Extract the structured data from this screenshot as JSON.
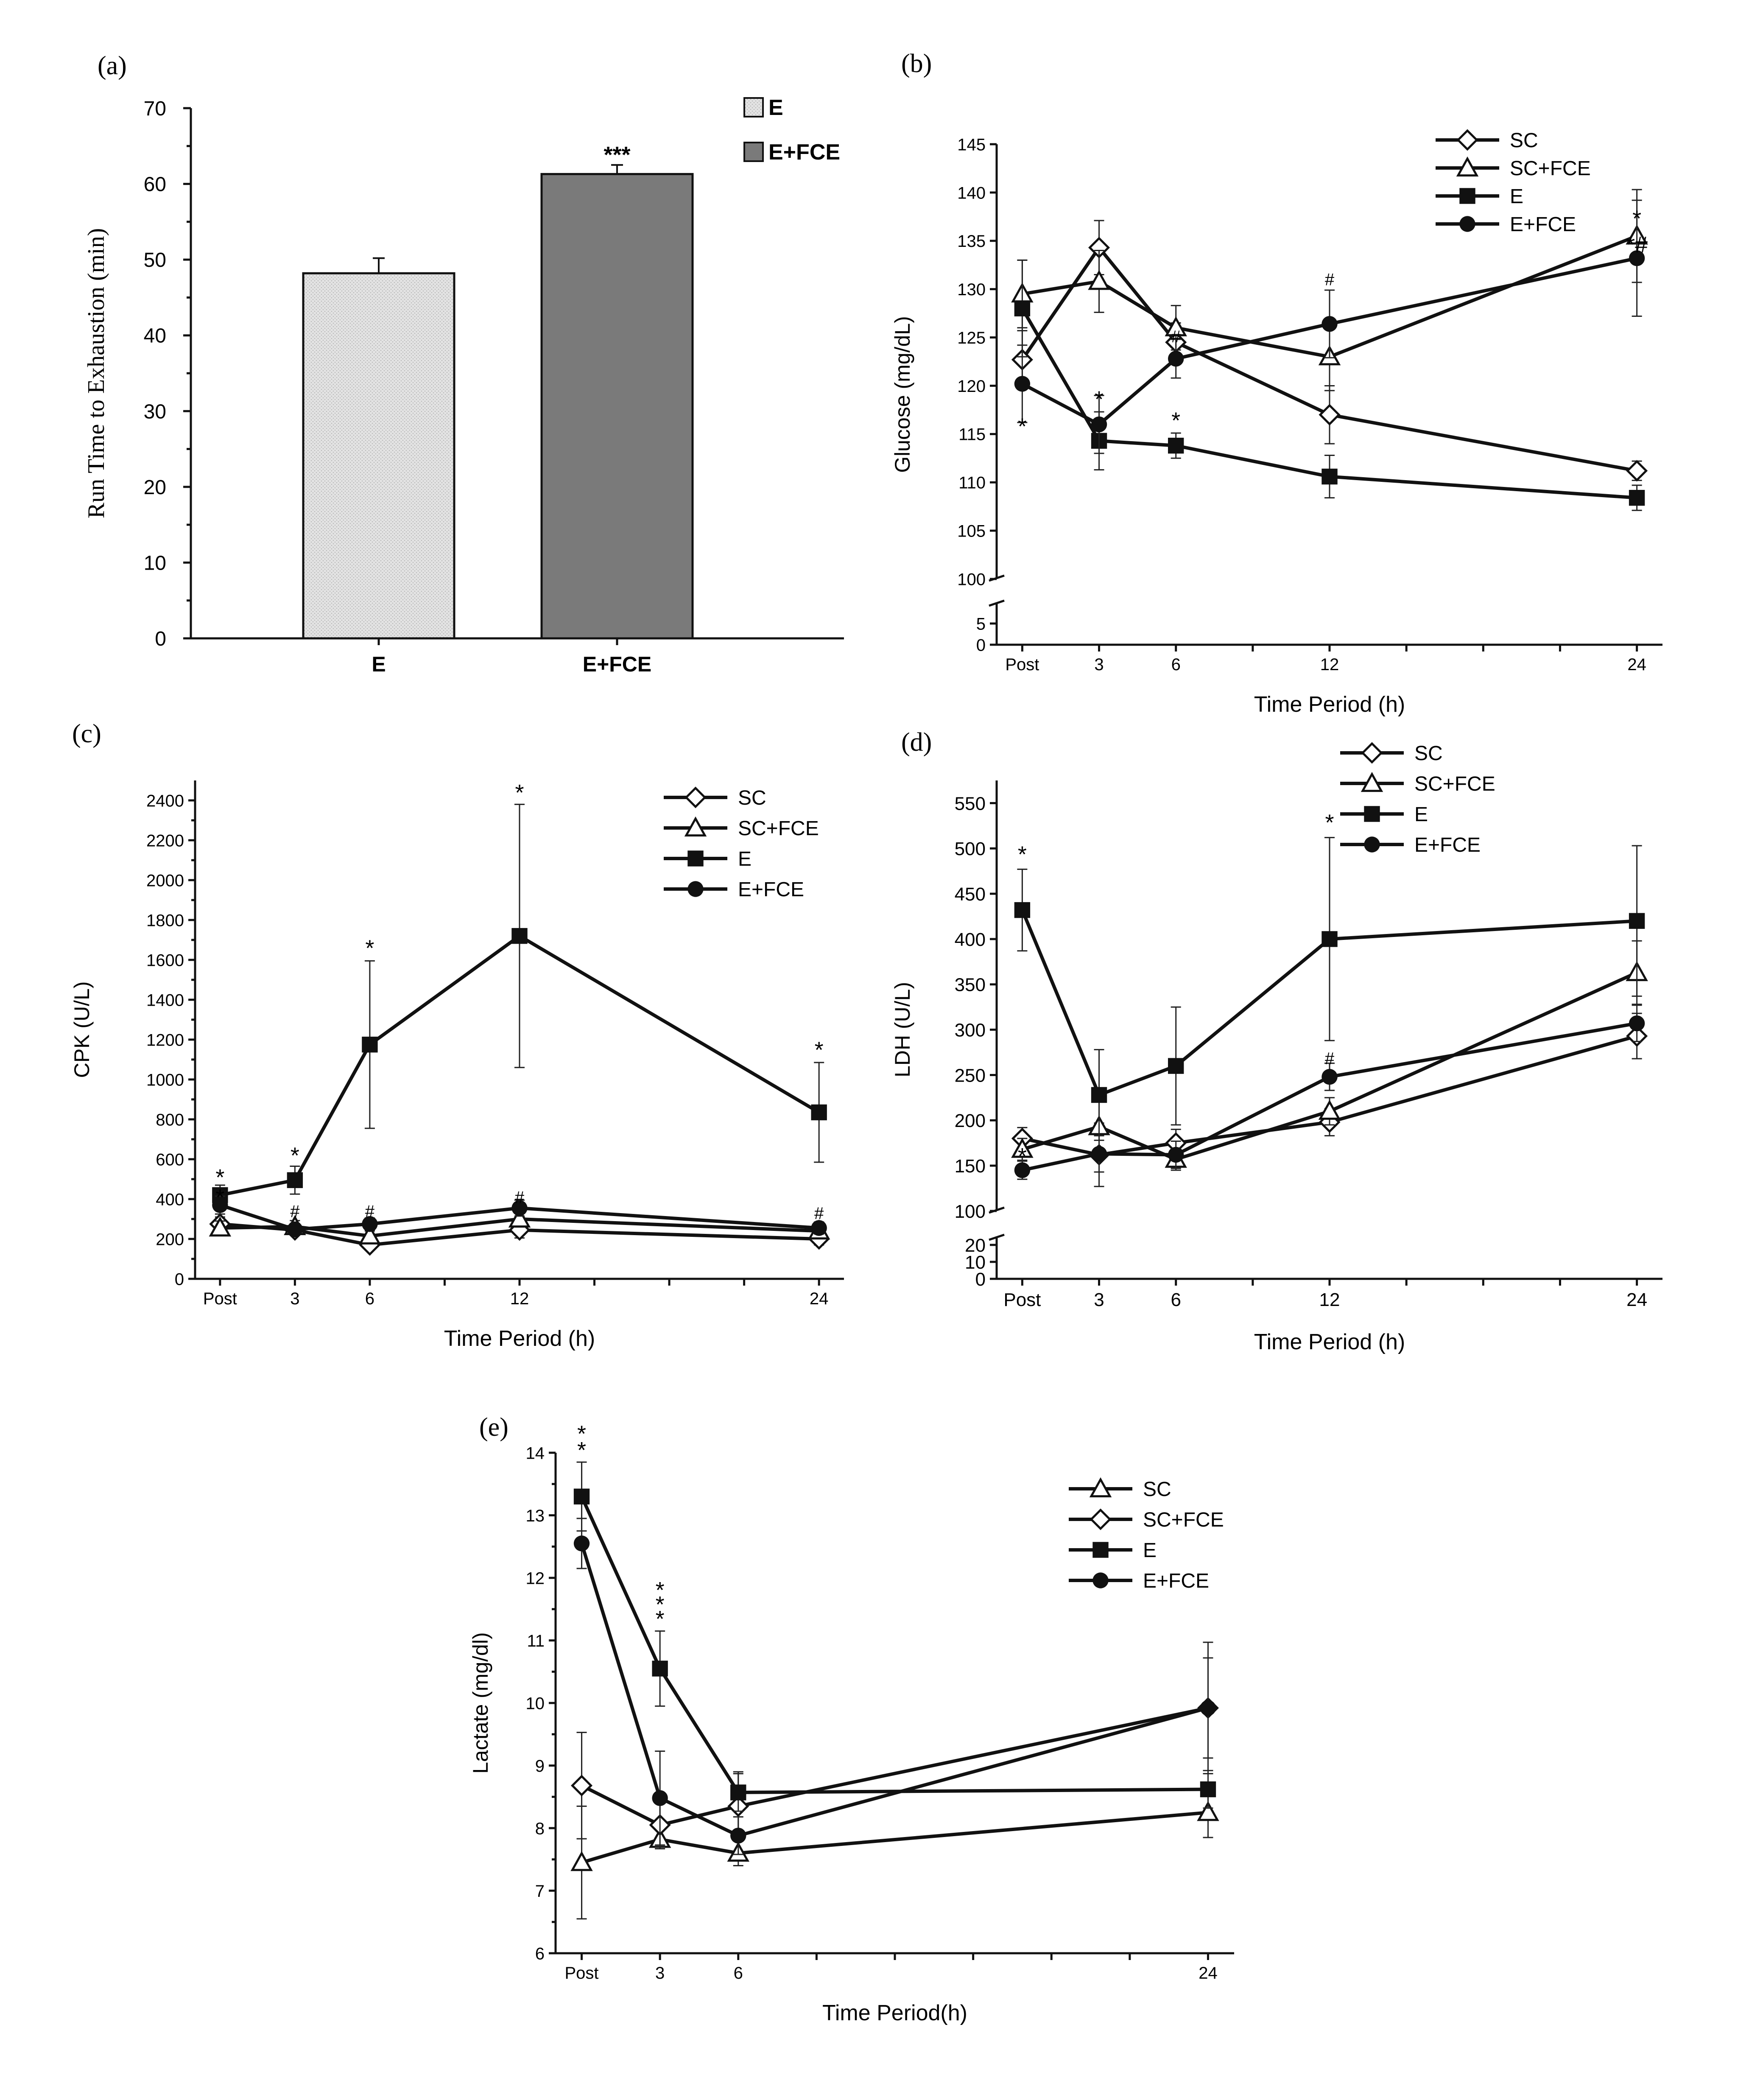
{
  "chart_data": [
    {
      "id": "a",
      "type": "bar",
      "panel_label": "(a)",
      "title": "",
      "xlabel": "",
      "ylabel": "Run Time to Exhaustion (min)",
      "ylim": [
        0,
        70
      ],
      "yticks": [
        0,
        10,
        20,
        30,
        40,
        50,
        60,
        70
      ],
      "categories": [
        "E",
        "E+FCE"
      ],
      "values": [
        48.2,
        61.3
      ],
      "errors": [
        2.0,
        1.2
      ],
      "bar_colors": [
        "#e3e3e3",
        "#7a7a7a"
      ],
      "annotations": [
        {
          "bar": 1,
          "text": "***"
        }
      ],
      "legend": [
        "E",
        "E+FCE"
      ]
    },
    {
      "id": "b",
      "type": "line",
      "panel_label": "(b)",
      "xlabel": "Time Period (h)",
      "ylabel": "Glucose (mg/dL)",
      "axis_break": true,
      "ylim_lower": [
        0,
        10
      ],
      "ylim_upper": [
        100,
        145
      ],
      "yticks_lower": [
        0,
        5
      ],
      "yticks_upper": [
        100,
        105,
        110,
        115,
        120,
        125,
        130,
        135,
        140,
        145
      ],
      "xlim": [
        -1,
        25
      ],
      "x": [
        0,
        3,
        6,
        12,
        24
      ],
      "xticklabels": [
        "Post",
        "3",
        "6",
        "12",
        "24"
      ],
      "series": [
        {
          "name": "SC",
          "marker": "diamond-open",
          "values": [
            122.7,
            134.3,
            124.5,
            117.0,
            111.2
          ],
          "errors": [
            3.0,
            2.8,
            2.0,
            3.0,
            1.0
          ]
        },
        {
          "name": "SC+FCE",
          "marker": "triangle-open",
          "values": [
            129.5,
            130.8,
            126.0,
            123.0,
            135.5
          ],
          "errors": [
            3.5,
            3.2,
            2.3,
            3.5,
            4.8
          ]
        },
        {
          "name": "E",
          "marker": "square-filled",
          "values": [
            128.0,
            114.3,
            113.8,
            110.6,
            108.4
          ],
          "errors": [
            5.0,
            3.0,
            1.3,
            2.2,
            1.3
          ]
        },
        {
          "name": "E+FCE",
          "marker": "circle-filled",
          "values": [
            120.2,
            116.0,
            122.8,
            126.4,
            133.2
          ],
          "errors": [
            4.0,
            3.0,
            2.0,
            3.5,
            6.0
          ]
        }
      ],
      "annotations": [
        {
          "x": 0,
          "y": 115.0,
          "text": "*"
        },
        {
          "x": 3,
          "y": 117.8,
          "text": "*"
        },
        {
          "x": 6,
          "y": 115.6,
          "text": "*"
        },
        {
          "x": 6,
          "y": 124.5,
          "text": "#"
        },
        {
          "x": 12,
          "y": 130.4,
          "text": "#"
        },
        {
          "x": 24,
          "y": 136.5,
          "text": "*"
        },
        {
          "x": 24,
          "y": 133.8,
          "text": "*#"
        }
      ]
    },
    {
      "id": "c",
      "type": "line",
      "panel_label": "(c)",
      "xlabel": "Time Period (h)",
      "ylabel": "CPK (U/L)",
      "ylim": [
        0,
        2500
      ],
      "yticks": [
        0,
        200,
        400,
        600,
        800,
        1000,
        1200,
        1400,
        1600,
        1800,
        2000,
        2200,
        2400
      ],
      "xlim": [
        -1,
        25
      ],
      "x": [
        0,
        3,
        6,
        12,
        24
      ],
      "xticklabels": [
        "Post",
        "3",
        "6",
        "12",
        "24"
      ],
      "series": [
        {
          "name": "SC",
          "marker": "diamond-open",
          "values": [
            275,
            245,
            170,
            245,
            200
          ],
          "errors": [
            35,
            25,
            20,
            40,
            30
          ]
        },
        {
          "name": "SC+FCE",
          "marker": "triangle-open",
          "values": [
            255,
            262,
            215,
            300,
            240
          ],
          "errors": [
            35,
            30,
            25,
            40,
            30
          ]
        },
        {
          "name": "E",
          "marker": "square-filled",
          "values": [
            420,
            495,
            1175,
            1720,
            835
          ],
          "errors": [
            50,
            70,
            420,
            660,
            250
          ]
        },
        {
          "name": "E+FCE",
          "marker": "circle-filled",
          "values": [
            370,
            248,
            275,
            355,
            255
          ],
          "errors": [
            45,
            30,
            30,
            40,
            30
          ]
        }
      ],
      "annotations": [
        {
          "x": 0,
          "y": 470,
          "text": "*"
        },
        {
          "x": 0,
          "y": 370,
          "text": "*"
        },
        {
          "x": 3,
          "y": 580,
          "text": "*"
        },
        {
          "x": 3,
          "y": 310,
          "text": "#"
        },
        {
          "x": 6,
          "y": 1620,
          "text": "*"
        },
        {
          "x": 6,
          "y": 310,
          "text": "#"
        },
        {
          "x": 12,
          "y": 2400,
          "text": "*"
        },
        {
          "x": 12,
          "y": 380,
          "text": "#"
        },
        {
          "x": 24,
          "y": 1110,
          "text": "*"
        },
        {
          "x": 24,
          "y": 300,
          "text": "#"
        }
      ]
    },
    {
      "id": "d",
      "type": "line",
      "panel_label": "(d)",
      "xlabel": "Time Period (h)",
      "ylabel": "LDH (U/L)",
      "axis_break": true,
      "ylim_lower": [
        0,
        25
      ],
      "ylim_upper": [
        100,
        575
      ],
      "yticks_lower": [
        0,
        10,
        20
      ],
      "yticks_upper": [
        100,
        150,
        200,
        250,
        300,
        350,
        400,
        450,
        500,
        550
      ],
      "xlim": [
        -1,
        25
      ],
      "x": [
        0,
        3,
        6,
        12,
        24
      ],
      "xticklabels": [
        "Post",
        "3",
        "6",
        "12",
        "24"
      ],
      "series": [
        {
          "name": "SC",
          "marker": "diamond-open",
          "values": [
            180,
            162,
            175,
            198,
            293
          ],
          "errors": [
            12,
            35,
            15,
            15,
            25
          ]
        },
        {
          "name": "SC+FCE",
          "marker": "triangle-open",
          "values": [
            168,
            193,
            157,
            210,
            363
          ],
          "errors": [
            12,
            30,
            12,
            15,
            35
          ]
        },
        {
          "name": "E",
          "marker": "square-filled",
          "values": [
            432,
            228,
            260,
            400,
            420
          ],
          "errors": [
            45,
            50,
            65,
            112,
            83
          ]
        },
        {
          "name": "E+FCE",
          "marker": "circle-filled",
          "values": [
            145,
            163,
            162,
            248,
            307
          ],
          "errors": [
            10,
            20,
            15,
            15,
            20
          ]
        }
      ],
      "annotations": [
        {
          "x": 0,
          "y": 485,
          "text": "*"
        },
        {
          "x": 0,
          "y": 152,
          "text": "*"
        },
        {
          "x": 12,
          "y": 520,
          "text": "*"
        },
        {
          "x": 12,
          "y": 262,
          "text": "#"
        }
      ]
    },
    {
      "id": "e",
      "type": "line",
      "panel_label": "(e)",
      "xlabel": "Time Period(h)",
      "ylabel": "Lactate (mg/dl)",
      "ylim": [
        6,
        14
      ],
      "yticks": [
        6,
        7,
        8,
        9,
        10,
        11,
        12,
        13,
        14
      ],
      "xlim": [
        -1,
        25
      ],
      "x": [
        0,
        3,
        6,
        24
      ],
      "xticklabels": [
        "Post",
        "3",
        "6",
        "24"
      ],
      "series": [
        {
          "name": "SC",
          "marker": "triangle-open",
          "values": [
            7.45,
            7.82,
            7.6,
            8.25
          ],
          "errors": [
            0.9,
            0.15,
            0.2,
            0.4
          ]
        },
        {
          "name": "SC+FCE",
          "marker": "diamond-open",
          "values": [
            8.68,
            8.05,
            8.35,
            9.92
          ],
          "errors": [
            0.85,
            0.35,
            0.55,
            1.05
          ]
        },
        {
          "name": "E",
          "marker": "square-filled",
          "values": [
            13.3,
            10.55,
            8.57,
            8.62
          ],
          "errors": [
            0.55,
            0.6,
            0.3,
            0.3
          ]
        },
        {
          "name": "E+FCE",
          "marker": "circle-filled",
          "values": [
            12.55,
            8.48,
            7.88,
            9.92
          ],
          "errors": [
            0.4,
            0.75,
            0.3,
            0.8
          ]
        }
      ],
      "annotations": [
        {
          "x": 0,
          "y": 13.92,
          "text": "*"
        },
        {
          "x": 0,
          "y": 14.18,
          "text": "*"
        },
        {
          "x": 3,
          "y": 11.22,
          "text": "*"
        },
        {
          "x": 3,
          "y": 11.45,
          "text": "*"
        },
        {
          "x": 3,
          "y": 11.68,
          "text": "*"
        }
      ]
    }
  ]
}
